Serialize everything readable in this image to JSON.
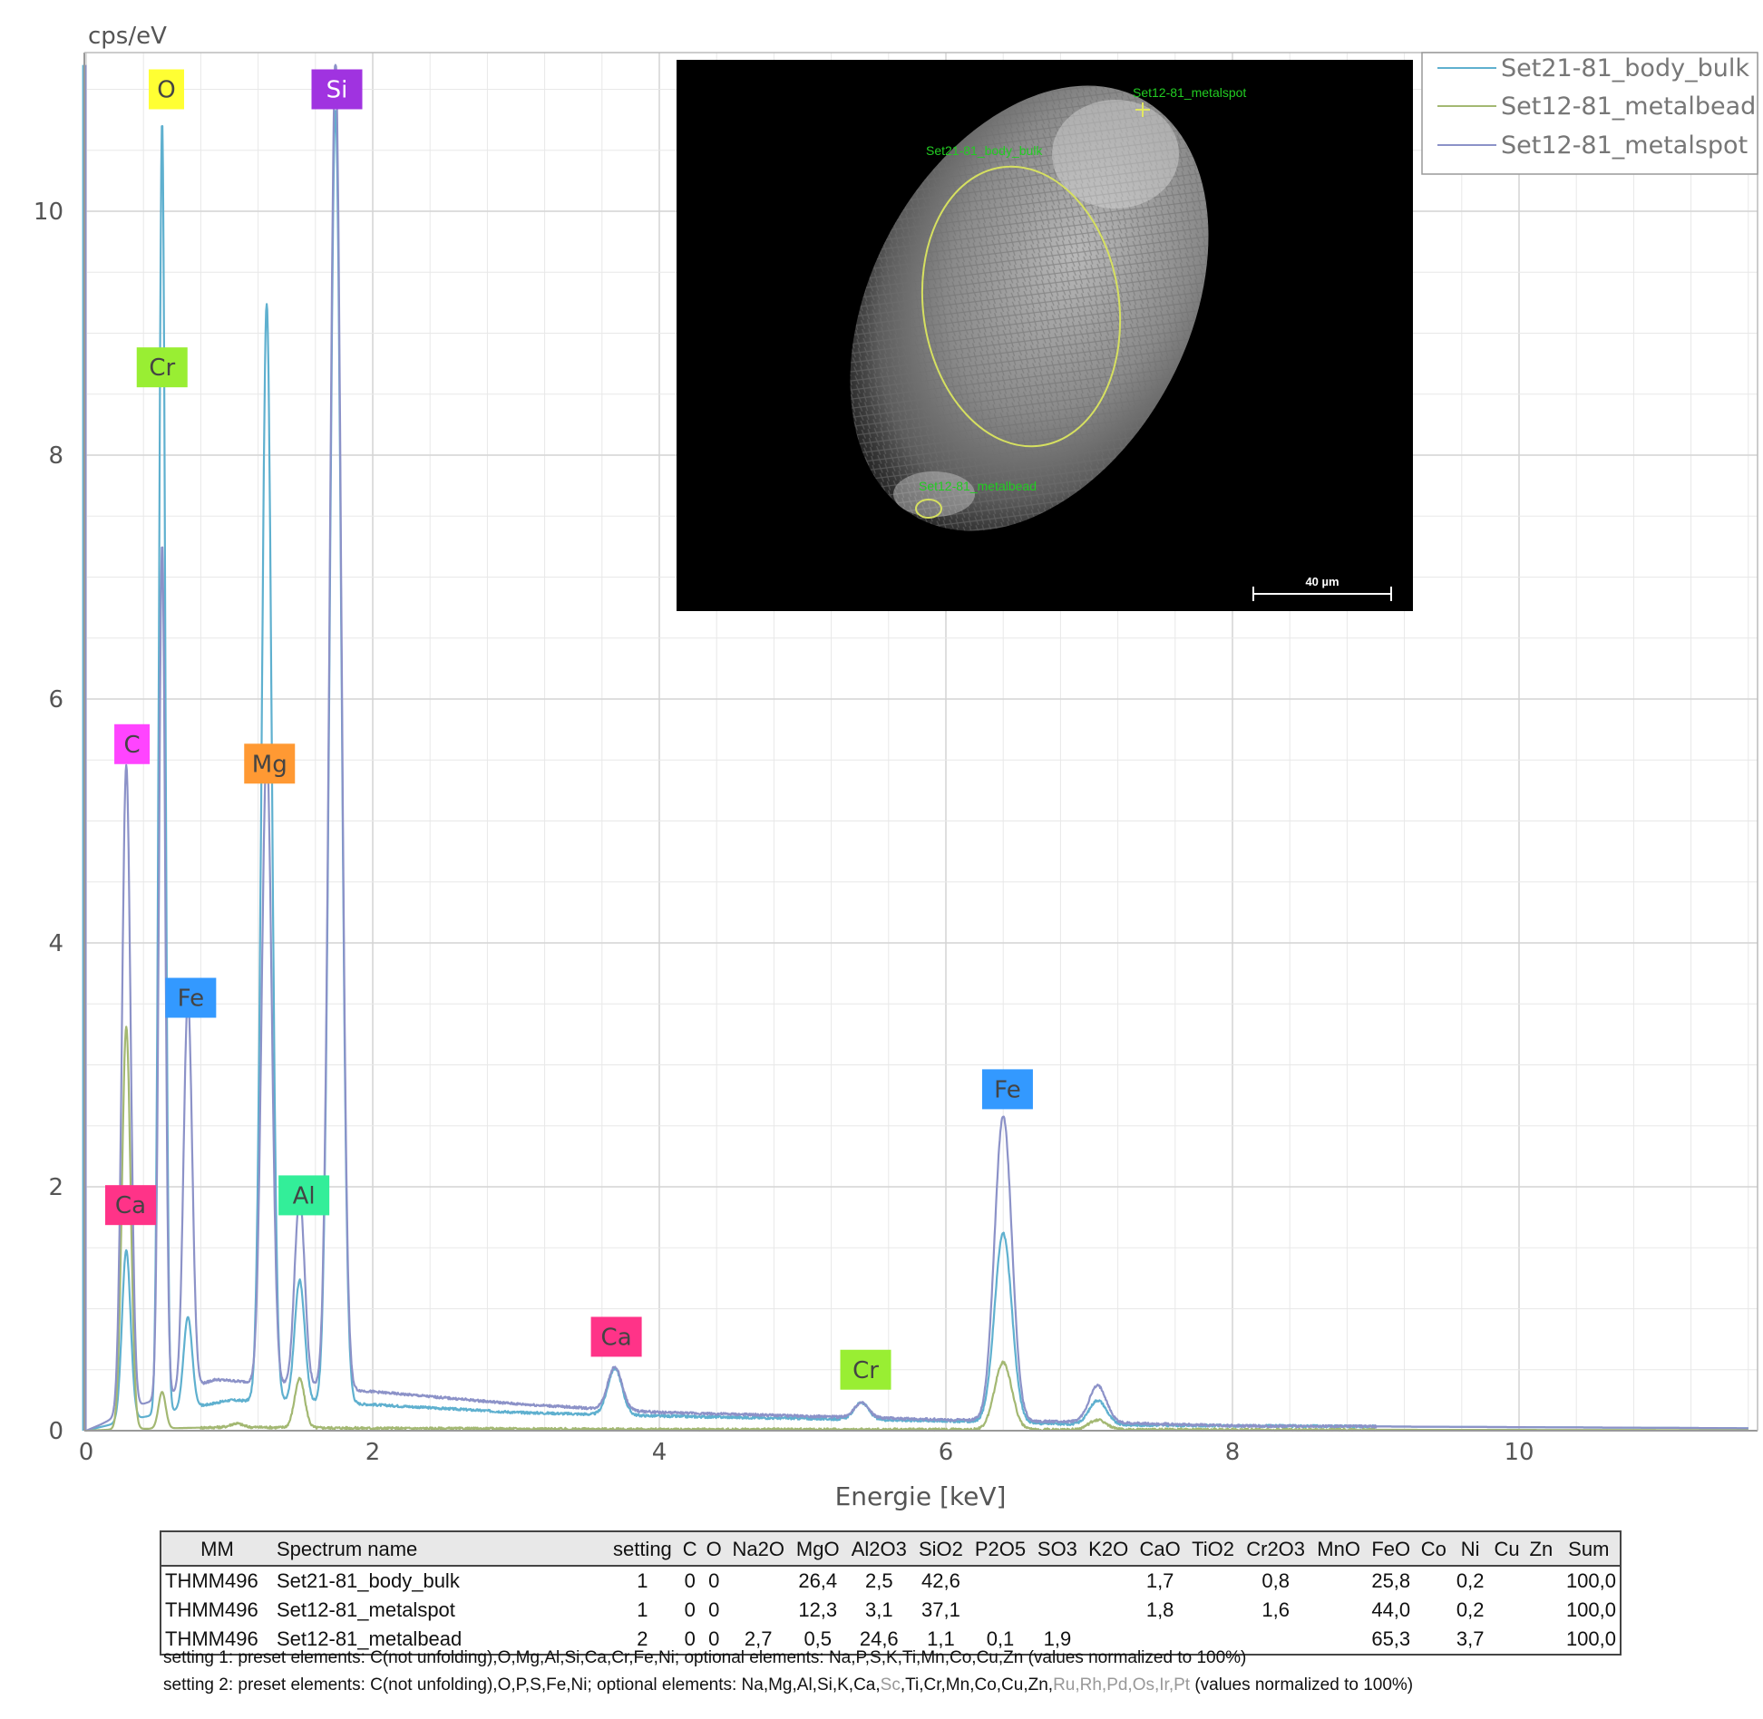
{
  "chart_data": {
    "type": "line",
    "ylabel": "cps/eV",
    "xlabel": "Energie [keV]",
    "xlim": [
      0,
      11.6
    ],
    "ylim": [
      0,
      11.2
    ],
    "x_ticks": [
      "0",
      "2",
      "4",
      "6",
      "8",
      "10"
    ],
    "y_ticks": [
      "0",
      "2",
      "4",
      "6",
      "8",
      "10"
    ],
    "grid": true,
    "legend_position": "top-right",
    "series": [
      {
        "name": "Set21-81_body_bulk",
        "color": "#5fb0cf",
        "baseline": [
          [
            0.0,
            0
          ],
          [
            0.1,
            0.03
          ],
          [
            0.35,
            0.1
          ],
          [
            1.0,
            0.25
          ],
          [
            1.9,
            0.22
          ],
          [
            3.0,
            0.15
          ],
          [
            4.0,
            0.12
          ],
          [
            5.0,
            0.1
          ],
          [
            6.0,
            0.08
          ],
          [
            7.0,
            0.05
          ],
          [
            8.0,
            0.04
          ],
          [
            11.6,
            0.02
          ]
        ],
        "peaks": [
          {
            "x": 0.28,
            "y": 1.4,
            "w": 0.03
          },
          {
            "x": 0.53,
            "y": 10.6,
            "w": 0.022
          },
          {
            "x": 0.71,
            "y": 0.75,
            "w": 0.03
          },
          {
            "x": 1.26,
            "y": 9.0,
            "w": 0.035
          },
          {
            "x": 1.49,
            "y": 1.0,
            "w": 0.035
          },
          {
            "x": 1.74,
            "y": 10.6,
            "w": 0.04
          },
          {
            "x": 3.69,
            "y": 0.38,
            "w": 0.05
          },
          {
            "x": 5.41,
            "y": 0.14,
            "w": 0.05
          },
          {
            "x": 6.4,
            "y": 1.55,
            "w": 0.06
          },
          {
            "x": 7.06,
            "y": 0.2,
            "w": 0.06
          }
        ]
      },
      {
        "name": "Set12-81_metalbead",
        "color": "#a3b872",
        "baseline": [
          [
            0.0,
            0
          ],
          [
            0.2,
            0.01
          ],
          [
            1.0,
            0.03
          ],
          [
            2.0,
            0.02
          ],
          [
            4.0,
            0.01
          ],
          [
            6.0,
            0.01
          ],
          [
            11.6,
            0.005
          ]
        ],
        "peaks": [
          {
            "x": 0.28,
            "y": 3.3,
            "w": 0.03
          },
          {
            "x": 0.53,
            "y": 0.3,
            "w": 0.025
          },
          {
            "x": 1.05,
            "y": 0.03,
            "w": 0.04
          },
          {
            "x": 1.49,
            "y": 0.4,
            "w": 0.035
          },
          {
            "x": 6.4,
            "y": 0.55,
            "w": 0.06
          },
          {
            "x": 7.06,
            "y": 0.08,
            "w": 0.06
          }
        ]
      },
      {
        "name": "Set12-81_metalspot",
        "color": "#8c92c8",
        "baseline": [
          [
            0.0,
            0
          ],
          [
            0.1,
            0.05
          ],
          [
            0.35,
            0.2
          ],
          [
            0.9,
            0.42
          ],
          [
            1.9,
            0.33
          ],
          [
            3.0,
            0.22
          ],
          [
            4.0,
            0.15
          ],
          [
            5.0,
            0.12
          ],
          [
            6.0,
            0.09
          ],
          [
            7.0,
            0.07
          ],
          [
            8.0,
            0.04
          ],
          [
            11.6,
            0.02
          ]
        ],
        "peaks": [
          {
            "x": 0.28,
            "y": 5.3,
            "w": 0.03
          },
          {
            "x": 0.53,
            "y": 7.0,
            "w": 0.022
          },
          {
            "x": 0.71,
            "y": 3.2,
            "w": 0.03
          },
          {
            "x": 1.26,
            "y": 5.2,
            "w": 0.035
          },
          {
            "x": 1.49,
            "y": 1.55,
            "w": 0.035
          },
          {
            "x": 1.74,
            "y": 10.9,
            "w": 0.04
          },
          {
            "x": 3.69,
            "y": 0.35,
            "w": 0.05
          },
          {
            "x": 5.41,
            "y": 0.12,
            "w": 0.05
          },
          {
            "x": 6.4,
            "y": 2.5,
            "w": 0.06
          },
          {
            "x": 7.06,
            "y": 0.3,
            "w": 0.06
          }
        ]
      }
    ],
    "annotations": [
      {
        "text": "O",
        "color": "#ffff33",
        "x": 0.56,
        "y": 11.0
      },
      {
        "text": "Si",
        "color": "#a033e0",
        "text_color": "#ffffff",
        "x": 1.75,
        "y": 11.0
      },
      {
        "text": "Cr",
        "color": "#99ee33",
        "x": 0.53,
        "y": 8.72
      },
      {
        "text": "C",
        "color": "#ff44ff",
        "x": 0.32,
        "y": 5.63
      },
      {
        "text": "Mg",
        "color": "#ff9933",
        "x": 1.28,
        "y": 5.47
      },
      {
        "text": "Fe",
        "color": "#3399ff",
        "x": 0.73,
        "y": 3.55
      },
      {
        "text": "Fe",
        "color": "#3399ff",
        "x": 6.43,
        "y": 2.8
      },
      {
        "text": "Ca",
        "color": "#ff3388",
        "x": 0.31,
        "y": 1.85
      },
      {
        "text": "Al",
        "color": "#33ee99",
        "x": 1.52,
        "y": 1.93
      },
      {
        "text": "Ca",
        "color": "#ff3388",
        "x": 3.7,
        "y": 0.77
      },
      {
        "text": "Cr",
        "color": "#99ee33",
        "x": 5.44,
        "y": 0.5
      }
    ]
  },
  "micrograph": {
    "labels": [
      "Set12-81_metalspot",
      "Set21-81_body_bulk",
      "Set12-81_metalbead"
    ],
    "scale_bar": "40 µm"
  },
  "table": {
    "columns": [
      "MM",
      "Spectrum name",
      "setting",
      "C",
      "O",
      "Na2O",
      "MgO",
      "Al2O3",
      "SiO2",
      "P2O5",
      "SO3",
      "K2O",
      "CaO",
      "TiO2",
      "Cr2O3",
      "MnO",
      "FeO",
      "Co",
      "Ni",
      "Cu",
      "Zn",
      "Sum"
    ],
    "rows": [
      [
        "THMM496",
        "Set21-81_body_bulk",
        "1",
        "0",
        "0",
        "",
        "26,4",
        "2,5",
        "42,6",
        "",
        "",
        "",
        "1,7",
        "",
        "0,8",
        "",
        "25,8",
        "",
        "0,2",
        "",
        "",
        "100,0"
      ],
      [
        "THMM496",
        "Set12-81_metalspot",
        "1",
        "0",
        "0",
        "",
        "12,3",
        "3,1",
        "37,1",
        "",
        "",
        "",
        "1,8",
        "",
        "1,6",
        "",
        "44,0",
        "",
        "0,2",
        "",
        "",
        "100,0"
      ],
      [
        "THMM496",
        "Set12-81_metalbead",
        "2",
        "0",
        "0",
        "2,7",
        "0,5",
        "24,6",
        "1,1",
        "0,1",
        "1,9",
        "",
        "",
        "",
        "",
        "",
        "65,3",
        "",
        "3,7",
        "",
        "",
        "100,0"
      ]
    ]
  },
  "notes": {
    "setting1": "setting 1: preset elements: C(not unfolding),O,Mg,Al,Si,Ca,Cr,Fe,Ni; optional elements: Na,P,S,K,Ti,Mn,Co,Cu,Zn (values normalized to 100%)",
    "setting2_a": "setting 2: preset elements: C(not unfolding),O,P,S,Fe,Ni; optional elements: Na,Mg,Al,Si,K,Ca,",
    "setting2_sc": "Sc",
    "setting2_b": ",Ti,Cr,Mn,Co,Cu,Zn,",
    "setting2_grey": "Ru,Rh,Pd,Os,Ir,Pt",
    "setting2_c": " (values normalized to 100%)"
  }
}
